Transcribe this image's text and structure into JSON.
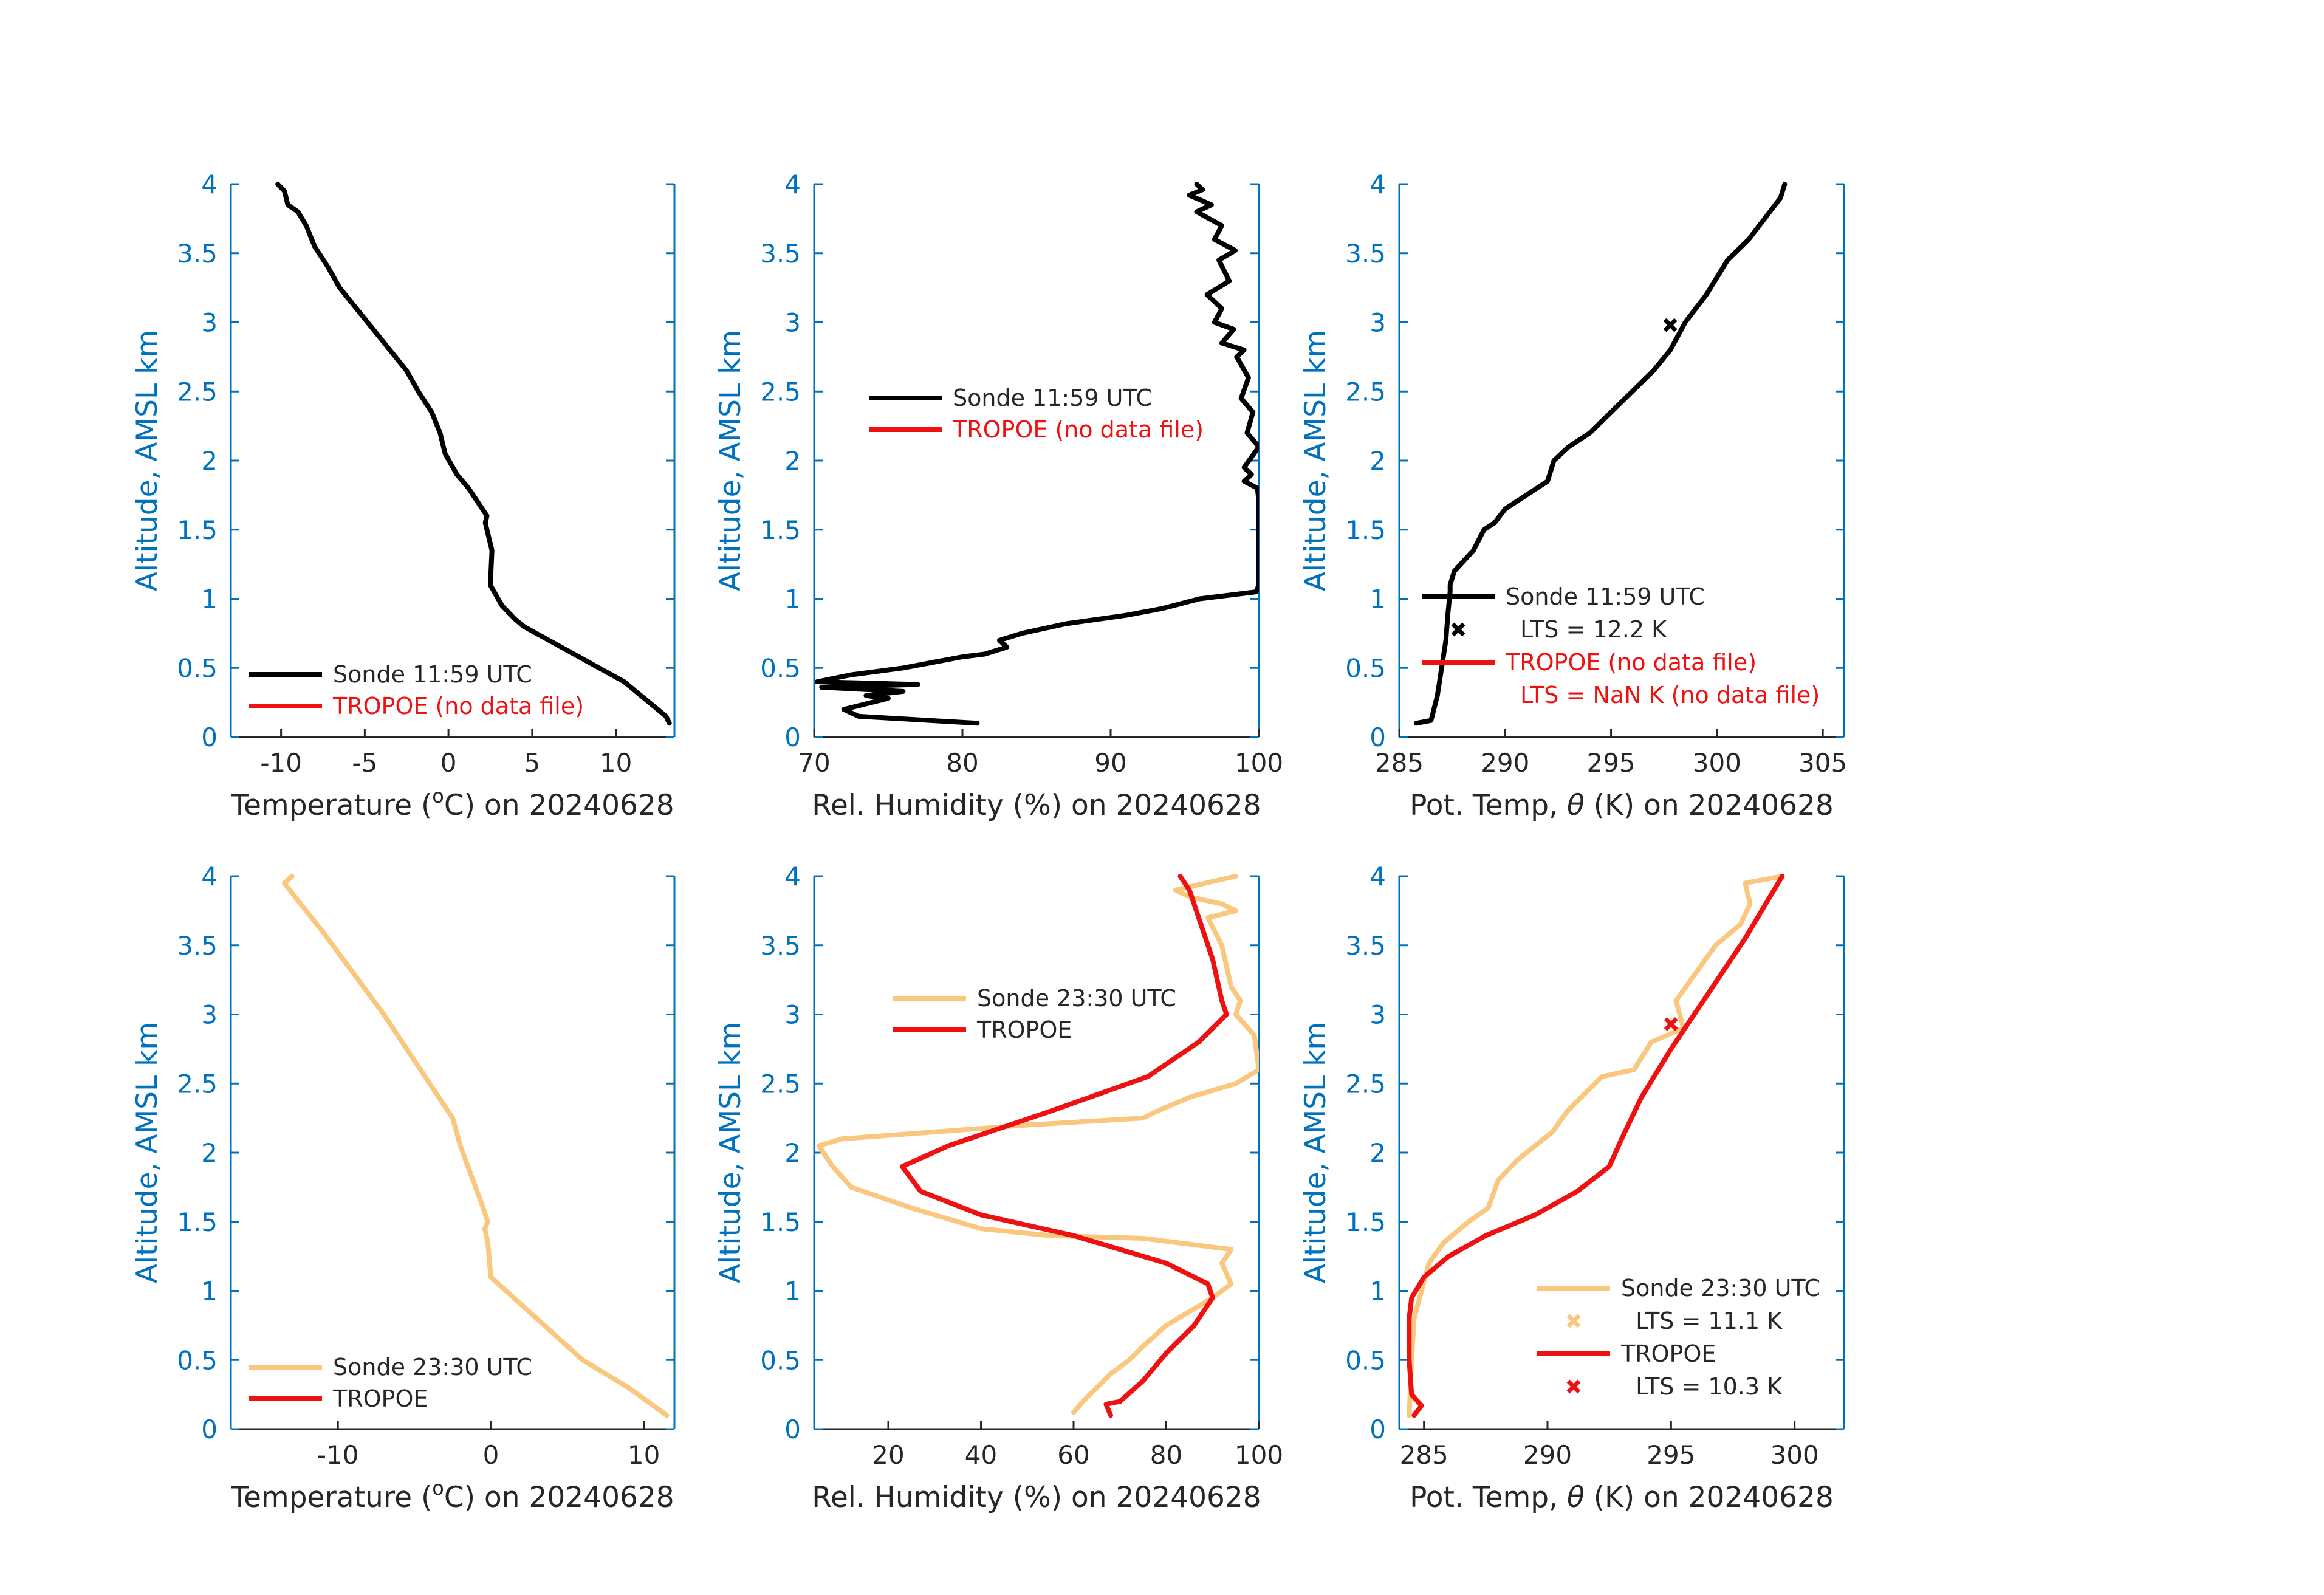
{
  "colors": {
    "axis": "#0072BD",
    "text": "#262626",
    "sonde_morning": "#000000",
    "tropoe": "#EE1111",
    "sonde_evening": "#F9C77E",
    "legend_red_text": "#EE1111"
  },
  "chart_data": [
    {
      "type": "line",
      "id": "temp-am",
      "xlabel_pre": "Temperature (",
      "xlabel_sup": "o",
      "xlabel_post": "C) on 20240628",
      "ylabel": "Altitude, AMSL km",
      "xlim": [
        -13,
        13.5
      ],
      "ylim": [
        0,
        4
      ],
      "xticks": [
        -10,
        -5,
        0,
        5,
        10
      ],
      "xtick_labels": [
        "-10",
        "-5",
        "0",
        "5",
        "10"
      ],
      "yticks": [
        0,
        0.5,
        1,
        1.5,
        2,
        2.5,
        3,
        3.5,
        4
      ],
      "ytick_labels": [
        "0",
        "0.5",
        "1",
        "1.5",
        "2",
        "2.5",
        "3",
        "3.5",
        "4"
      ],
      "legend_position": "bottom",
      "legend": [
        {
          "label": "Sonde 11:59 UTC",
          "color": "#000000",
          "kind": "line"
        },
        {
          "label": "TROPOE (no data file)",
          "color": "#EE1111",
          "kind": "line",
          "text_color": "#EE1111"
        }
      ],
      "series": [
        {
          "name": "Sonde 11:59 UTC",
          "color": "#000000",
          "x": [
            13.2,
            13.0,
            12.5,
            11.5,
            10.5,
            9.0,
            7.5,
            6.0,
            4.5,
            4.0,
            3.2,
            2.5,
            2.6,
            2.2,
            2.3,
            1.2,
            0.5,
            -0.2,
            -0.5,
            -1.0,
            -1.8,
            -2.5,
            -3.5,
            -4.5,
            -5.5,
            -6.5,
            -7.2,
            -8.0,
            -8.5,
            -9.0,
            -9.6,
            -9.8,
            -10.2
          ],
          "y": [
            0.1,
            0.15,
            0.2,
            0.3,
            0.4,
            0.5,
            0.6,
            0.7,
            0.8,
            0.85,
            0.95,
            1.1,
            1.35,
            1.55,
            1.6,
            1.8,
            1.9,
            2.05,
            2.2,
            2.35,
            2.5,
            2.65,
            2.8,
            2.95,
            3.1,
            3.25,
            3.4,
            3.55,
            3.7,
            3.8,
            3.85,
            3.95,
            4.0
          ]
        }
      ]
    },
    {
      "type": "line",
      "id": "rh-am",
      "xlabel_pre": "Rel. Humidity (%) on 20240628",
      "xlabel_sup": "",
      "xlabel_post": "",
      "ylabel": "Altitude, AMSL km",
      "xlim": [
        70,
        100
      ],
      "ylim": [
        0,
        4
      ],
      "xticks": [
        70,
        80,
        90,
        100
      ],
      "xtick_labels": [
        "70",
        "80",
        "90",
        "100"
      ],
      "yticks": [
        0,
        0.5,
        1,
        1.5,
        2,
        2.5,
        3,
        3.5,
        4
      ],
      "ytick_labels": [
        "0",
        "0.5",
        "1",
        "1.5",
        "2",
        "2.5",
        "3",
        "3.5",
        "4"
      ],
      "legend_position": "upper-middle",
      "legend": [
        {
          "label": "Sonde 11:59 UTC",
          "color": "#000000",
          "kind": "line"
        },
        {
          "label": "TROPOE (no data file)",
          "color": "#EE1111",
          "kind": "line",
          "text_color": "#EE1111"
        }
      ],
      "series": [
        {
          "name": "Sonde 11:59 UTC",
          "color": "#000000",
          "x": [
            81.0,
            73.0,
            72.0,
            75.0,
            73.5,
            76.0,
            70.5,
            77.0,
            70.2,
            72.5,
            76.0,
            80.0,
            81.5,
            83.0,
            82.5,
            84.0,
            87.0,
            91.0,
            93.5,
            96.0,
            99.8,
            100,
            100,
            100,
            100,
            99.9,
            99.0,
            99.5,
            99.0,
            100,
            99.2,
            99.6,
            98.8,
            99.3,
            98.5,
            99.0,
            97.5,
            98.3,
            97.0,
            97.5,
            96.5,
            98.0,
            97.3,
            98.4,
            97.0,
            97.5,
            95.8,
            96.8,
            95.3,
            96.2,
            95.8
          ],
          "y": [
            0.1,
            0.15,
            0.2,
            0.28,
            0.3,
            0.33,
            0.36,
            0.38,
            0.4,
            0.45,
            0.5,
            0.58,
            0.6,
            0.65,
            0.7,
            0.75,
            0.82,
            0.88,
            0.93,
            1.0,
            1.05,
            1.1,
            1.3,
            1.5,
            1.7,
            1.8,
            1.85,
            1.9,
            1.95,
            2.1,
            2.2,
            2.35,
            2.45,
            2.6,
            2.75,
            2.8,
            2.85,
            2.95,
            3.0,
            3.1,
            3.2,
            3.3,
            3.45,
            3.52,
            3.6,
            3.7,
            3.8,
            3.85,
            3.92,
            3.96,
            4.0
          ]
        }
      ]
    },
    {
      "type": "line",
      "id": "theta-am",
      "xlabel_pre": "Pot. Temp, ",
      "xlabel_sym": "θ",
      "xlabel_post": " (K) on 20240628",
      "ylabel": "Altitude, AMSL km",
      "xlim": [
        285,
        306
      ],
      "ylim": [
        0,
        4
      ],
      "xticks": [
        285,
        290,
        295,
        300,
        305
      ],
      "xtick_labels": [
        "285",
        "290",
        "295",
        "300",
        "305"
      ],
      "yticks": [
        0,
        0.5,
        1,
        1.5,
        2,
        2.5,
        3,
        3.5,
        4
      ],
      "ytick_labels": [
        "0",
        "0.5",
        "1",
        "1.5",
        "2",
        "2.5",
        "3",
        "3.5",
        "4"
      ],
      "legend_position": "bottom-right",
      "legend": [
        {
          "label": "Sonde 11:59 UTC",
          "color": "#000000",
          "kind": "line"
        },
        {
          "label": "LTS = 12.2 K",
          "color": "#000000",
          "kind": "marker"
        },
        {
          "label": "TROPOE (no data file)",
          "color": "#EE1111",
          "kind": "line",
          "text_color": "#EE1111"
        },
        {
          "label": "LTS = NaN K (no data file)",
          "color": "#EE1111",
          "kind": "none",
          "text_color": "#EE1111"
        }
      ],
      "series": [
        {
          "name": "Sonde 11:59 UTC",
          "color": "#000000",
          "x": [
            285.8,
            286.5,
            286.8,
            287.0,
            287.2,
            287.3,
            287.4,
            287.4,
            287.6,
            288.5,
            289.0,
            289.5,
            290.0,
            291.0,
            292.0,
            292.3,
            293.0,
            294.0,
            295.0,
            296.0,
            297.0,
            297.8,
            298.5,
            299.5,
            300.5,
            301.5,
            302.5,
            303.0,
            303.2
          ],
          "y": [
            0.1,
            0.12,
            0.3,
            0.5,
            0.7,
            0.9,
            1.05,
            1.1,
            1.2,
            1.35,
            1.5,
            1.55,
            1.65,
            1.75,
            1.85,
            2.0,
            2.1,
            2.2,
            2.35,
            2.5,
            2.65,
            2.8,
            3.0,
            3.2,
            3.45,
            3.6,
            3.8,
            3.9,
            4.0
          ]
        }
      ],
      "markers": [
        {
          "name": "LTS = 12.2 K",
          "x": 297.8,
          "y": 2.98,
          "color": "#000000"
        }
      ]
    },
    {
      "type": "line",
      "id": "temp-pm",
      "xlabel_pre": "Temperature (",
      "xlabel_sup": "o",
      "xlabel_post": "C) on 20240628",
      "ylabel": "Altitude, AMSL km",
      "xlim": [
        -17,
        12
      ],
      "ylim": [
        0,
        4
      ],
      "xticks": [
        -10,
        0,
        10
      ],
      "xtick_labels": [
        "-10",
        "0",
        "10"
      ],
      "yticks": [
        0,
        0.5,
        1,
        1.5,
        2,
        2.5,
        3,
        3.5,
        4
      ],
      "ytick_labels": [
        "0",
        "0.5",
        "1",
        "1.5",
        "2",
        "2.5",
        "3",
        "3.5",
        "4"
      ],
      "legend_position": "bottom",
      "legend": [
        {
          "label": "Sonde 23:30 UTC",
          "color": "#F9C77E",
          "kind": "line"
        },
        {
          "label": "TROPOE",
          "color": "#EE1111",
          "kind": "line"
        }
      ],
      "series": [
        {
          "name": "Sonde 23:30 UTC",
          "color": "#F9C77E",
          "x": [
            11.5,
            9.0,
            6.0,
            3.5,
            1.5,
            0.0,
            -0.2,
            -0.4,
            -0.2,
            -0.5,
            -1.0,
            -1.5,
            -2.0,
            -2.5,
            -4.0,
            -5.5,
            -7.0,
            -9.0,
            -11.0,
            -12.8,
            -13.5,
            -13.0
          ],
          "y": [
            0.1,
            0.3,
            0.5,
            0.75,
            0.95,
            1.1,
            1.35,
            1.45,
            1.5,
            1.6,
            1.75,
            1.9,
            2.05,
            2.25,
            2.5,
            2.75,
            3.0,
            3.3,
            3.6,
            3.85,
            3.95,
            4.0
          ]
        }
      ]
    },
    {
      "type": "line",
      "id": "rh-pm",
      "xlabel_pre": "Rel. Humidity (%) on 20240628",
      "xlabel_sup": "",
      "xlabel_post": "",
      "ylabel": "Altitude, AMSL km",
      "xlim": [
        4,
        100
      ],
      "ylim": [
        0,
        4
      ],
      "xticks": [
        20,
        40,
        60,
        80,
        100
      ],
      "xtick_labels": [
        "20",
        "40",
        "60",
        "80",
        "100"
      ],
      "yticks": [
        0,
        0.5,
        1,
        1.5,
        2,
        2.5,
        3,
        3.5,
        4
      ],
      "ytick_labels": [
        "0",
        "0.5",
        "1",
        "1.5",
        "2",
        "2.5",
        "3",
        "3.5",
        "4"
      ],
      "legend_position": "upper-middle",
      "legend": [
        {
          "label": "Sonde 23:30 UTC",
          "color": "#F9C77E",
          "kind": "line"
        },
        {
          "label": "TROPOE",
          "color": "#EE1111",
          "kind": "line"
        }
      ],
      "series": [
        {
          "name": "Sonde 23:30 UTC",
          "color": "#F9C77E",
          "x": [
            60,
            62,
            65,
            68,
            72,
            75,
            80,
            85,
            90,
            94,
            92,
            94,
            75,
            55,
            40,
            25,
            12,
            8,
            5,
            10,
            30,
            50,
            75,
            78,
            85,
            95,
            100,
            99,
            95,
            96,
            94,
            93,
            92,
            89,
            95,
            92,
            85,
            82,
            95
          ],
          "y": [
            0.12,
            0.2,
            0.3,
            0.4,
            0.5,
            0.6,
            0.75,
            0.85,
            0.95,
            1.05,
            1.2,
            1.3,
            1.38,
            1.4,
            1.45,
            1.6,
            1.75,
            1.9,
            2.05,
            2.1,
            2.15,
            2.2,
            2.25,
            2.3,
            2.4,
            2.5,
            2.6,
            2.85,
            3.0,
            3.1,
            3.2,
            3.35,
            3.5,
            3.7,
            3.75,
            3.8,
            3.85,
            3.9,
            4.0
          ]
        },
        {
          "name": "TROPOE",
          "color": "#EE1111",
          "x": [
            68,
            67,
            70,
            75,
            80,
            86,
            90,
            89,
            80,
            60,
            40,
            27,
            23,
            33,
            55,
            76,
            87,
            93,
            92,
            90,
            87,
            85,
            83
          ],
          "y": [
            0.1,
            0.18,
            0.2,
            0.35,
            0.55,
            0.75,
            0.95,
            1.05,
            1.2,
            1.4,
            1.55,
            1.72,
            1.9,
            2.05,
            2.3,
            2.55,
            2.8,
            3.0,
            3.1,
            3.4,
            3.7,
            3.9,
            4.0
          ]
        }
      ]
    },
    {
      "type": "line",
      "id": "theta-pm",
      "xlabel_pre": "Pot. Temp, ",
      "xlabel_sym": "θ",
      "xlabel_post": " (K) on 20240628",
      "ylabel": "Altitude, AMSL km",
      "xlim": [
        284,
        302
      ],
      "ylim": [
        0,
        4
      ],
      "xticks": [
        285,
        290,
        295,
        300
      ],
      "xtick_labels": [
        "285",
        "290",
        "295",
        "300"
      ],
      "yticks": [
        0,
        0.5,
        1,
        1.5,
        2,
        2.5,
        3,
        3.5,
        4
      ],
      "ytick_labels": [
        "0",
        "0.5",
        "1",
        "1.5",
        "2",
        "2.5",
        "3",
        "3.5",
        "4"
      ],
      "legend_position": "bottom-right",
      "legend": [
        {
          "label": "Sonde 23:30 UTC",
          "color": "#F9C77E",
          "kind": "line"
        },
        {
          "label": "LTS = 11.1 K",
          "color": "#F9C77E",
          "kind": "marker"
        },
        {
          "label": "TROPOE",
          "color": "#EE1111",
          "kind": "line"
        },
        {
          "label": "LTS = 10.3 K",
          "color": "#EE1111",
          "kind": "marker"
        }
      ],
      "series": [
        {
          "name": "Sonde 23:30 UTC",
          "color": "#F9C77E",
          "x": [
            284.4,
            284.5,
            284.6,
            284.9,
            285.2,
            285.8,
            286.8,
            287.6,
            288.0,
            288.8,
            289.5,
            290.2,
            290.8,
            292.2,
            293.5,
            294.2,
            295.5,
            295.2,
            296.0,
            296.8,
            297.8,
            298.2,
            298.0,
            299.5
          ],
          "y": [
            0.1,
            0.5,
            0.8,
            1.0,
            1.2,
            1.35,
            1.5,
            1.6,
            1.8,
            1.95,
            2.05,
            2.15,
            2.3,
            2.55,
            2.6,
            2.8,
            2.9,
            3.1,
            3.3,
            3.5,
            3.65,
            3.8,
            3.95,
            4.0
          ]
        },
        {
          "name": "TROPOE",
          "color": "#EE1111",
          "x": [
            284.6,
            284.9,
            284.5,
            284.4,
            284.4,
            284.5,
            285.0,
            286.0,
            287.5,
            289.5,
            291.2,
            292.5,
            293.0,
            293.8,
            295.0,
            296.5,
            298.0,
            299.5
          ],
          "y": [
            0.1,
            0.17,
            0.25,
            0.5,
            0.8,
            0.95,
            1.1,
            1.25,
            1.4,
            1.55,
            1.72,
            1.9,
            2.1,
            2.4,
            2.75,
            3.15,
            3.55,
            4.0
          ]
        }
      ],
      "markers": [
        {
          "name": "LTS = 11.1 K",
          "x": 295.0,
          "y": 2.93,
          "color": "#F9C77E"
        },
        {
          "name": "LTS = 10.3 K",
          "x": 295.0,
          "y": 2.93,
          "color": "#EE1111"
        }
      ]
    }
  ]
}
